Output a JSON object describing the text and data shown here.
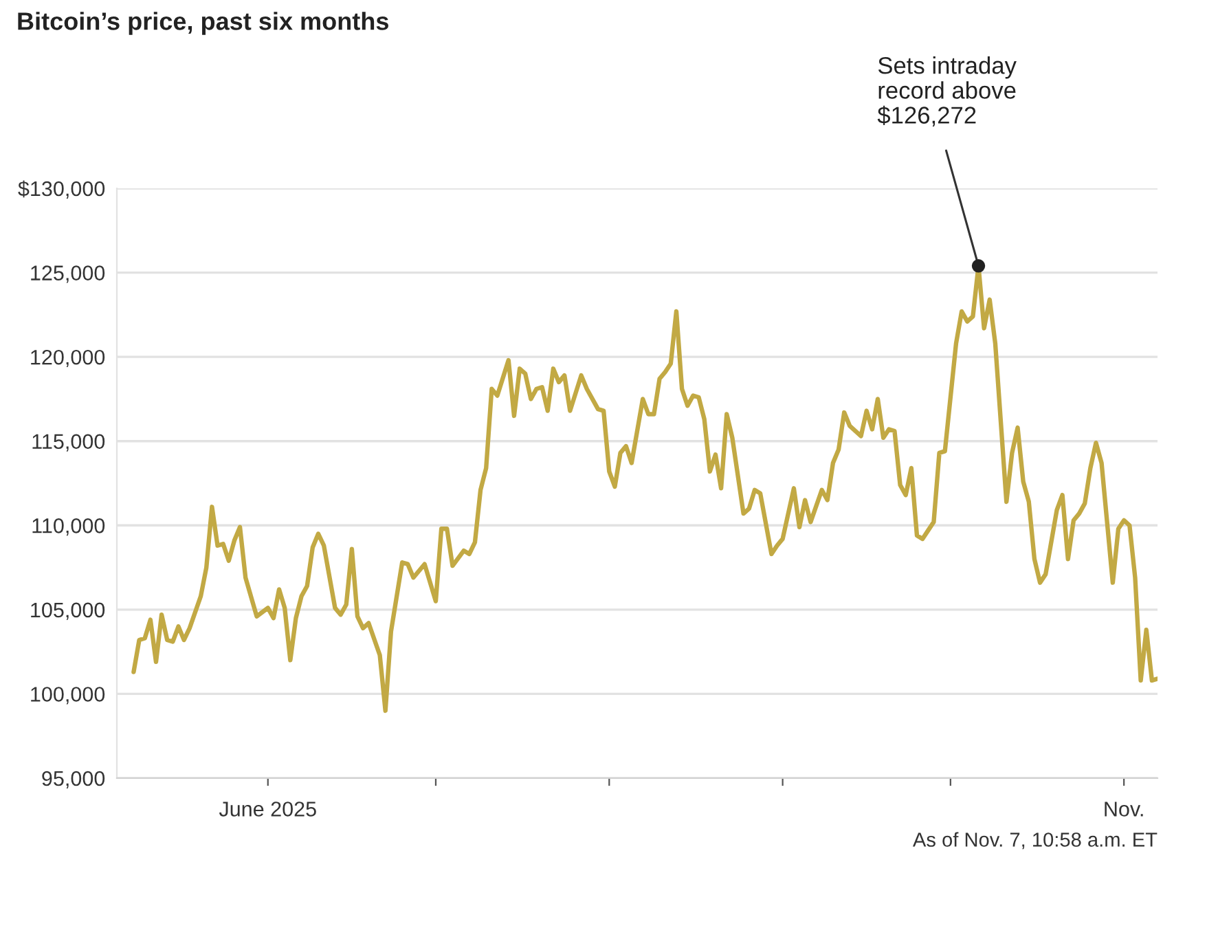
{
  "chart_data": {
    "type": "line",
    "title": "Bitcoin’s price, past six months",
    "x": [
      "2025-05-08",
      "2025-05-09",
      "2025-05-10",
      "2025-05-11",
      "2025-05-12",
      "2025-05-13",
      "2025-05-14",
      "2025-05-15",
      "2025-05-16",
      "2025-05-17",
      "2025-05-18",
      "2025-05-20",
      "2025-05-21",
      "2025-05-22",
      "2025-05-23",
      "2025-05-24",
      "2025-05-25",
      "2025-05-26",
      "2025-05-27",
      "2025-05-28",
      "2025-05-30",
      "2025-06-01",
      "2025-06-02",
      "2025-06-03",
      "2025-06-04",
      "2025-06-05",
      "2025-06-06",
      "2025-06-07",
      "2025-06-08",
      "2025-06-09",
      "2025-06-10",
      "2025-06-11",
      "2025-06-13",
      "2025-06-14",
      "2025-06-15",
      "2025-06-16",
      "2025-06-17",
      "2025-06-18",
      "2025-06-19",
      "2025-06-21",
      "2025-06-22",
      "2025-06-23",
      "2025-06-25",
      "2025-06-26",
      "2025-06-27",
      "2025-06-29",
      "2025-07-01",
      "2025-07-02",
      "2025-07-03",
      "2025-07-04",
      "2025-07-06",
      "2025-07-07",
      "2025-07-08",
      "2025-07-09",
      "2025-07-10",
      "2025-07-11",
      "2025-07-12",
      "2025-07-14",
      "2025-07-15",
      "2025-07-16",
      "2025-07-17",
      "2025-07-18",
      "2025-07-19",
      "2025-07-20",
      "2025-07-21",
      "2025-07-22",
      "2025-07-23",
      "2025-07-24",
      "2025-07-25",
      "2025-07-27",
      "2025-07-28",
      "2025-07-30",
      "2025-07-31",
      "2025-08-01",
      "2025-08-02",
      "2025-08-03",
      "2025-08-04",
      "2025-08-05",
      "2025-08-07",
      "2025-08-08",
      "2025-08-09",
      "2025-08-10",
      "2025-08-11",
      "2025-08-12",
      "2025-08-13",
      "2025-08-14",
      "2025-08-15",
      "2025-08-16",
      "2025-08-17",
      "2025-08-18",
      "2025-08-19",
      "2025-08-20",
      "2025-08-21",
      "2025-08-22",
      "2025-08-23",
      "2025-08-25",
      "2025-08-26",
      "2025-08-27",
      "2025-08-28",
      "2025-08-30",
      "2025-08-31",
      "2025-09-01",
      "2025-09-03",
      "2025-09-04",
      "2025-09-05",
      "2025-09-06",
      "2025-09-08",
      "2025-09-09",
      "2025-09-10",
      "2025-09-11",
      "2025-09-12",
      "2025-09-13",
      "2025-09-15",
      "2025-09-16",
      "2025-09-17",
      "2025-09-18",
      "2025-09-19",
      "2025-09-20",
      "2025-09-21",
      "2025-09-22",
      "2025-09-23",
      "2025-09-24",
      "2025-09-25",
      "2025-09-26",
      "2025-09-27",
      "2025-09-28",
      "2025-09-29",
      "2025-09-30",
      "2025-10-02",
      "2025-10-03",
      "2025-10-04",
      "2025-10-05",
      "2025-10-06",
      "2025-10-07",
      "2025-10-08",
      "2025-10-09",
      "2025-10-11",
      "2025-10-12",
      "2025-10-13",
      "2025-10-14",
      "2025-10-15",
      "2025-10-16",
      "2025-10-17",
      "2025-10-18",
      "2025-10-20",
      "2025-10-21",
      "2025-10-22",
      "2025-10-23",
      "2025-10-24",
      "2025-10-25",
      "2025-10-26",
      "2025-10-27",
      "2025-10-28",
      "2025-10-30",
      "2025-10-31",
      "2025-11-01",
      "2025-11-02",
      "2025-11-03",
      "2025-11-04",
      "2025-11-05",
      "2025-11-06",
      "2025-11-07"
    ],
    "series": [
      {
        "color": "#c2a944",
        "values": [
          101300,
          103200,
          103300,
          104400,
          101900,
          104700,
          103200,
          103100,
          104000,
          103200,
          103900,
          105800,
          107500,
          111100,
          108800,
          108900,
          107900,
          109100,
          109900,
          106900,
          104600,
          105100,
          104500,
          106200,
          105100,
          102000,
          104500,
          105800,
          106400,
          108700,
          109500,
          108800,
          105100,
          104700,
          105300,
          108600,
          104600,
          103900,
          104200,
          102300,
          99000,
          103700,
          107800,
          107700,
          106900,
          107700,
          105500,
          109800,
          109800,
          107600,
          108500,
          108300,
          109000,
          112100,
          113400,
          118100,
          117700,
          119800,
          116500,
          119300,
          119000,
          117500,
          118100,
          118200,
          116800,
          119300,
          118500,
          118900,
          116800,
          118900,
          118100,
          116900,
          116800,
          113200,
          112300,
          114300,
          114700,
          113700,
          117500,
          116600,
          116600,
          118700,
          119100,
          119600,
          122700,
          118100,
          117100,
          117700,
          117600,
          116300,
          113200,
          114200,
          112200,
          116600,
          115200,
          110700,
          111000,
          112100,
          111900,
          108300,
          108800,
          109200,
          112200,
          109900,
          111500,
          110200,
          112100,
          111500,
          113700,
          114500,
          116700,
          115900,
          115300,
          116800,
          115700,
          117500,
          115200,
          115700,
          115600,
          112400,
          111800,
          113400,
          109400,
          109200,
          109700,
          110200,
          114300,
          114400,
          120800,
          122700,
          122100,
          122400,
          125400,
          121700,
          123400,
          120800,
          111400,
          114300,
          115800,
          112600,
          111400,
          108000,
          106600,
          107100,
          110900,
          111800,
          108000,
          110300,
          110700,
          111300,
          113400,
          114900,
          113700,
          106600,
          109800,
          110300,
          110000,
          106900,
          100800,
          103800,
          100800,
          100900
        ]
      }
    ],
    "xlim": [
      "2025-05-05",
      "2025-11-07"
    ],
    "xticks": [
      {
        "value": "2025-06-01",
        "label": "June 2025"
      },
      {
        "value": "2025-07-01",
        "label": null
      },
      {
        "value": "2025-08-01",
        "label": null
      },
      {
        "value": "2025-09-01",
        "label": null
      },
      {
        "value": "2025-10-01",
        "label": null
      },
      {
        "value": "2025-11-01",
        "label": "Nov."
      }
    ],
    "ylim": [
      95000,
      130000
    ],
    "yticks": [
      {
        "value": 95000,
        "label": "95,000"
      },
      {
        "value": 100000,
        "label": "100,000"
      },
      {
        "value": 105000,
        "label": "105,000"
      },
      {
        "value": 110000,
        "label": "110,000"
      },
      {
        "value": 115000,
        "label": "115,000"
      },
      {
        "value": 120000,
        "label": "120,000"
      },
      {
        "value": 125000,
        "label": "125,000"
      },
      {
        "value": 130000,
        "label": "$130,000"
      }
    ],
    "grid": "y",
    "annotations": [
      {
        "text": "Sets intraday\nrecord above\n$126,272",
        "x": "2025-10-06",
        "y": 125400
      },
      "As of Nov. 7, 10:58 a.m. ET"
    ]
  }
}
